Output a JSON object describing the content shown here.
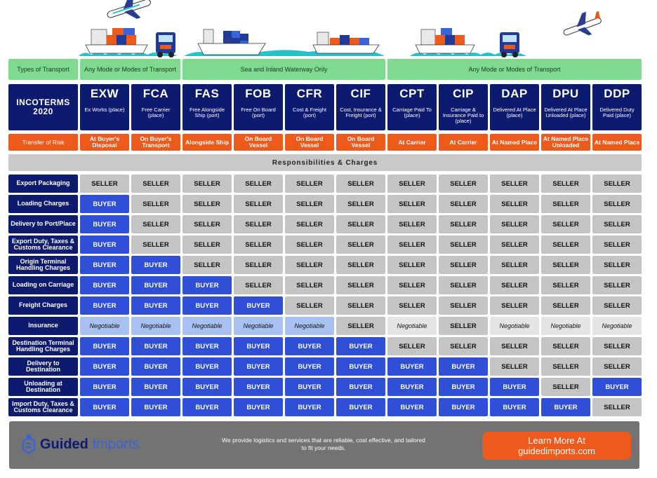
{
  "header": {
    "transport_label": "Types of Transport",
    "transport_groups": [
      {
        "text": "Any Mode or Modes of Transport"
      },
      {
        "text": "Sea and Inland Waterway Only"
      },
      {
        "text": "Any Mode or Modes of Transport"
      }
    ],
    "incoterms_line1": "INCOTERMS",
    "incoterms_line2": "2020",
    "risk_label": "Transfer of Risk",
    "section_title": "Responsibilities & Charges"
  },
  "terms": [
    {
      "code": "EXW",
      "name": "Ex Works (place)",
      "risk": "At Buyer's Disposal"
    },
    {
      "code": "FCA",
      "name": "Free Carrier (place)",
      "risk": "On Buyer's Transport"
    },
    {
      "code": "FAS",
      "name": "Free Alongside Ship (port)",
      "risk": "Alongside Ship"
    },
    {
      "code": "FOB",
      "name": "Free On Board (port)",
      "risk": "On Board Vessel"
    },
    {
      "code": "CFR",
      "name": "Cost & Freight (port)",
      "risk": "On Board Vessel"
    },
    {
      "code": "CIF",
      "name": "Cost, Insurance & Freight (port)",
      "risk": "On Board Vessel"
    },
    {
      "code": "CPT",
      "name": "Carriage Paid To (place)",
      "risk": "At Carrier"
    },
    {
      "code": "CIP",
      "name": "Carriage & Insurance Paid to (place)",
      "risk": "At Carrier"
    },
    {
      "code": "DAP",
      "name": "Delivered At Place (place)",
      "risk": "At Named Place"
    },
    {
      "code": "DPU",
      "name": "Delivered At Place Unloaded (place)",
      "risk": "At Named Place Unloaded"
    },
    {
      "code": "DDP",
      "name": "Delivered Duty Paid (place)",
      "risk": "At Named Place"
    }
  ],
  "rows": [
    {
      "label": "Export Packaging",
      "cells": [
        "SELLER",
        "SELLER",
        "SELLER",
        "SELLER",
        "SELLER",
        "SELLER",
        "SELLER",
        "SELLER",
        "SELLER",
        "SELLER",
        "SELLER"
      ]
    },
    {
      "label": "Loading Charges",
      "cells": [
        "BUYER",
        "SELLER",
        "SELLER",
        "SELLER",
        "SELLER",
        "SELLER",
        "SELLER",
        "SELLER",
        "SELLER",
        "SELLER",
        "SELLER"
      ]
    },
    {
      "label": "Delivery to Port/Place",
      "cells": [
        "BUYER",
        "SELLER",
        "SELLER",
        "SELLER",
        "SELLER",
        "SELLER",
        "SELLER",
        "SELLER",
        "SELLER",
        "SELLER",
        "SELLER"
      ]
    },
    {
      "label": "Export Duty, Taxes & Customs Clearance",
      "cells": [
        "BUYER",
        "SELLER",
        "SELLER",
        "SELLER",
        "SELLER",
        "SELLER",
        "SELLER",
        "SELLER",
        "SELLER",
        "SELLER",
        "SELLER"
      ]
    },
    {
      "label": "Origin Terminal Handling Charges",
      "cells": [
        "BUYER",
        "BUYER",
        "SELLER",
        "SELLER",
        "SELLER",
        "SELLER",
        "SELLER",
        "SELLER",
        "SELLER",
        "SELLER",
        "SELLER"
      ]
    },
    {
      "label": "Loading on Carriage",
      "cells": [
        "BUYER",
        "BUYER",
        "BUYER",
        "SELLER",
        "SELLER",
        "SELLER",
        "SELLER",
        "SELLER",
        "SELLER",
        "SELLER",
        "SELLER"
      ]
    },
    {
      "label": "Freight Charges",
      "cells": [
        "BUYER",
        "BUYER",
        "BUYER",
        "BUYER",
        "SELLER",
        "SELLER",
        "SELLER",
        "SELLER",
        "SELLER",
        "SELLER",
        "SELLER"
      ]
    },
    {
      "label": "Insurance",
      "cells": [
        "Negotiable",
        "Negotiable",
        "Negotiable",
        "Negotiable",
        "Negotiable",
        "SELLER",
        "Negotiable",
        "SELLER",
        "Negotiable",
        "Negotiable",
        "Negotiable"
      ]
    },
    {
      "label": "Destination Terminal Handling Charges",
      "cells": [
        "BUYER",
        "BUYER",
        "BUYER",
        "BUYER",
        "BUYER",
        "BUYER",
        "SELLER",
        "SELLER",
        "SELLER",
        "SELLER",
        "SELLER"
      ]
    },
    {
      "label": "Delivery to Destination",
      "cells": [
        "BUYER",
        "BUYER",
        "BUYER",
        "BUYER",
        "BUYER",
        "BUYER",
        "BUYER",
        "BUYER",
        "SELLER",
        "SELLER",
        "SELLER"
      ]
    },
    {
      "label": "Unloading at Destination",
      "cells": [
        "BUYER",
        "BUYER",
        "BUYER",
        "BUYER",
        "BUYER",
        "BUYER",
        "BUYER",
        "BUYER",
        "BUYER",
        "SELLER",
        "BUYER"
      ]
    },
    {
      "label": "Import Duty, Taxes & Customs Clearance",
      "cells": [
        "BUYER",
        "BUYER",
        "BUYER",
        "BUYER",
        "BUYER",
        "BUYER",
        "BUYER",
        "BUYER",
        "BUYER",
        "BUYER",
        "SELLER"
      ]
    }
  ],
  "footer": {
    "brand_bold": "Guided",
    "brand_light": "Imports",
    "tagline": "We provide logistics and services that are reliable, cost effective, and tailored to fit your needs.",
    "cta_line1": "Learn More At",
    "cta_line2": "guidedimports.com"
  },
  "colors": {
    "navy": "#0d1b6e",
    "buyer_blue": "#2f4fd6",
    "orange": "#ee5a1c",
    "green": "#7fd98f",
    "seller_gray": "#c4c4c4"
  },
  "icons": [
    "airplane-icon",
    "cargo-ship-icon",
    "truck-icon",
    "logo-icon"
  ]
}
